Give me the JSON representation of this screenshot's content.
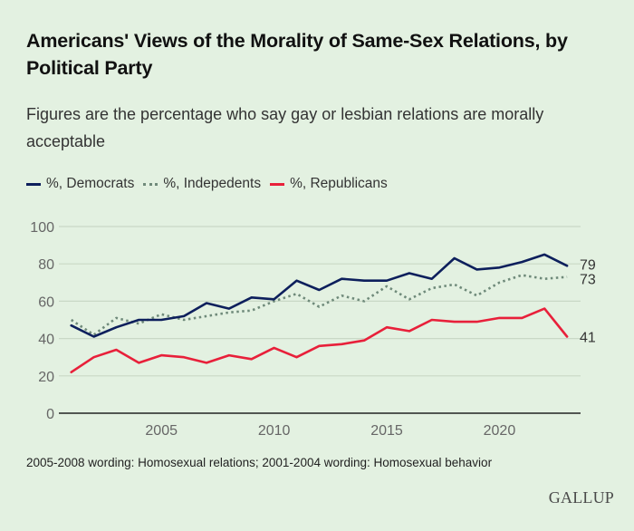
{
  "header": {
    "title": "Americans' Views of the Morality of Same-Sex Relations, by Political Party",
    "subtitle": "Figures are the percentage who say gay or lesbian relations are morally acceptable"
  },
  "legend": [
    {
      "label": "%, Democrats",
      "color": "#0d1f5c",
      "style": "solid"
    },
    {
      "label": "%, Indepedents",
      "color": "#6f8a7a",
      "style": "dotted"
    },
    {
      "label": "%, Republicans",
      "color": "#e8203a",
      "style": "solid"
    }
  ],
  "footer": {
    "note": "2005-2008 wording: Homosexual relations; 2001-2004 wording: Homosexual behavior",
    "logo": "GALLUP"
  },
  "chart_data": {
    "type": "line",
    "title": "Americans' Views of the Morality of Same-Sex Relations, by Political Party",
    "subtitle": "Figures are the percentage who say gay or lesbian relations are morally acceptable",
    "xlabel": "",
    "ylabel": "",
    "x": [
      2001,
      2002,
      2003,
      2004,
      2005,
      2006,
      2007,
      2008,
      2009,
      2010,
      2011,
      2012,
      2013,
      2014,
      2015,
      2016,
      2017,
      2018,
      2019,
      2020,
      2021,
      2022,
      2023
    ],
    "xlim": [
      2000.45,
      2023.6
    ],
    "ylim": [
      0,
      100
    ],
    "xticks": [
      2005,
      2010,
      2015,
      2020
    ],
    "yticks": [
      0,
      20,
      40,
      60,
      80,
      100
    ],
    "grid": true,
    "legend_position": "top-left",
    "series": [
      {
        "name": "%, Democrats",
        "color": "#0d1f5c",
        "style": "solid",
        "end_label": "79",
        "values": [
          47,
          41,
          46,
          50,
          50,
          52,
          59,
          56,
          62,
          61,
          71,
          66,
          72,
          71,
          71,
          75,
          72,
          83,
          77,
          78,
          81,
          85,
          79
        ]
      },
      {
        "name": "%, Indepedents",
        "color": "#6f8a7a",
        "style": "dotted",
        "end_label": "73",
        "values": [
          50,
          42,
          51,
          48,
          53,
          50,
          52,
          54,
          55,
          60,
          64,
          57,
          63,
          60,
          68,
          61,
          67,
          69,
          63,
          70,
          74,
          72,
          73
        ]
      },
      {
        "name": "%, Republicans",
        "color": "#e8203a",
        "style": "solid",
        "end_label": "41",
        "values": [
          22,
          30,
          34,
          27,
          31,
          30,
          27,
          31,
          29,
          35,
          30,
          36,
          37,
          39,
          46,
          44,
          50,
          49,
          49,
          51,
          51,
          56,
          41
        ]
      }
    ]
  }
}
